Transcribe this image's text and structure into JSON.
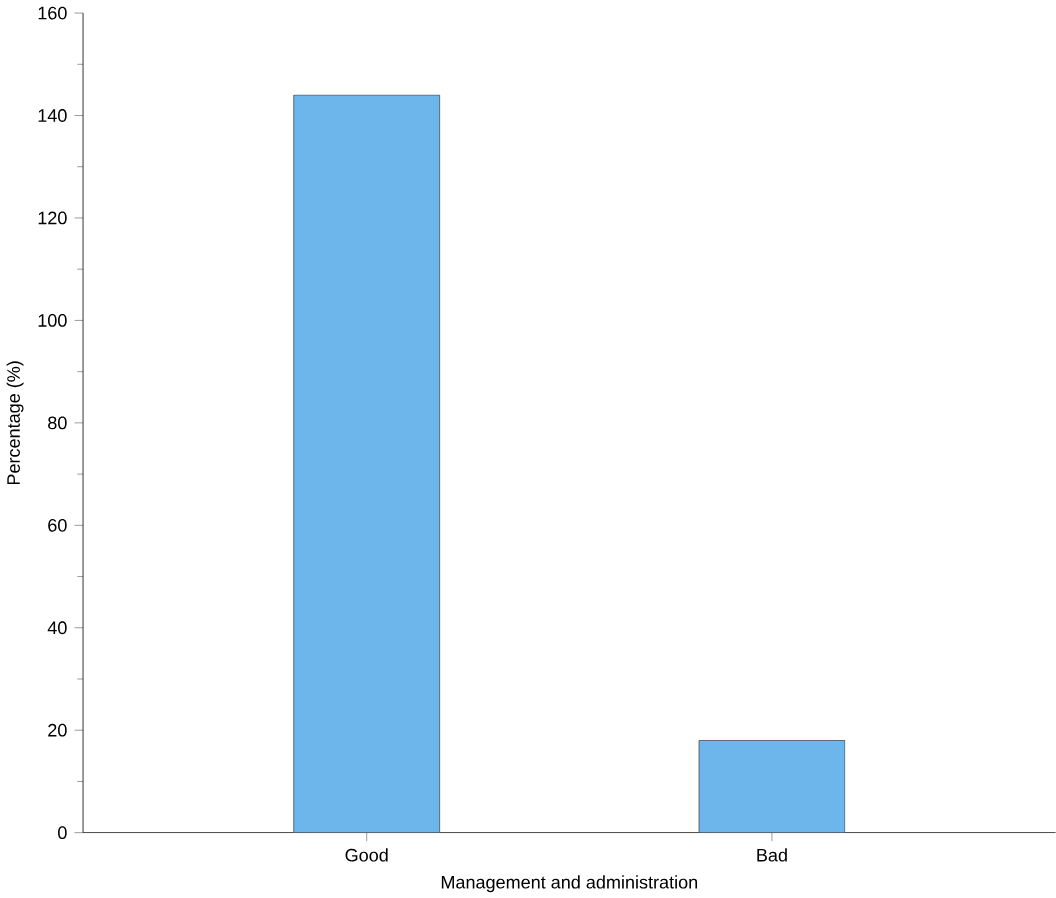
{
  "chart_data": {
    "type": "bar",
    "xlabel": "Management and administration",
    "ylabel": "Percentage (%)",
    "categories": [
      "Good",
      "Bad"
    ],
    "values": [
      144,
      18
    ],
    "color": "#6cb6ec",
    "ylim": [
      0,
      160
    ],
    "yticks": [
      0,
      20,
      40,
      60,
      80,
      100,
      120,
      140,
      160
    ],
    "grid": false
  }
}
